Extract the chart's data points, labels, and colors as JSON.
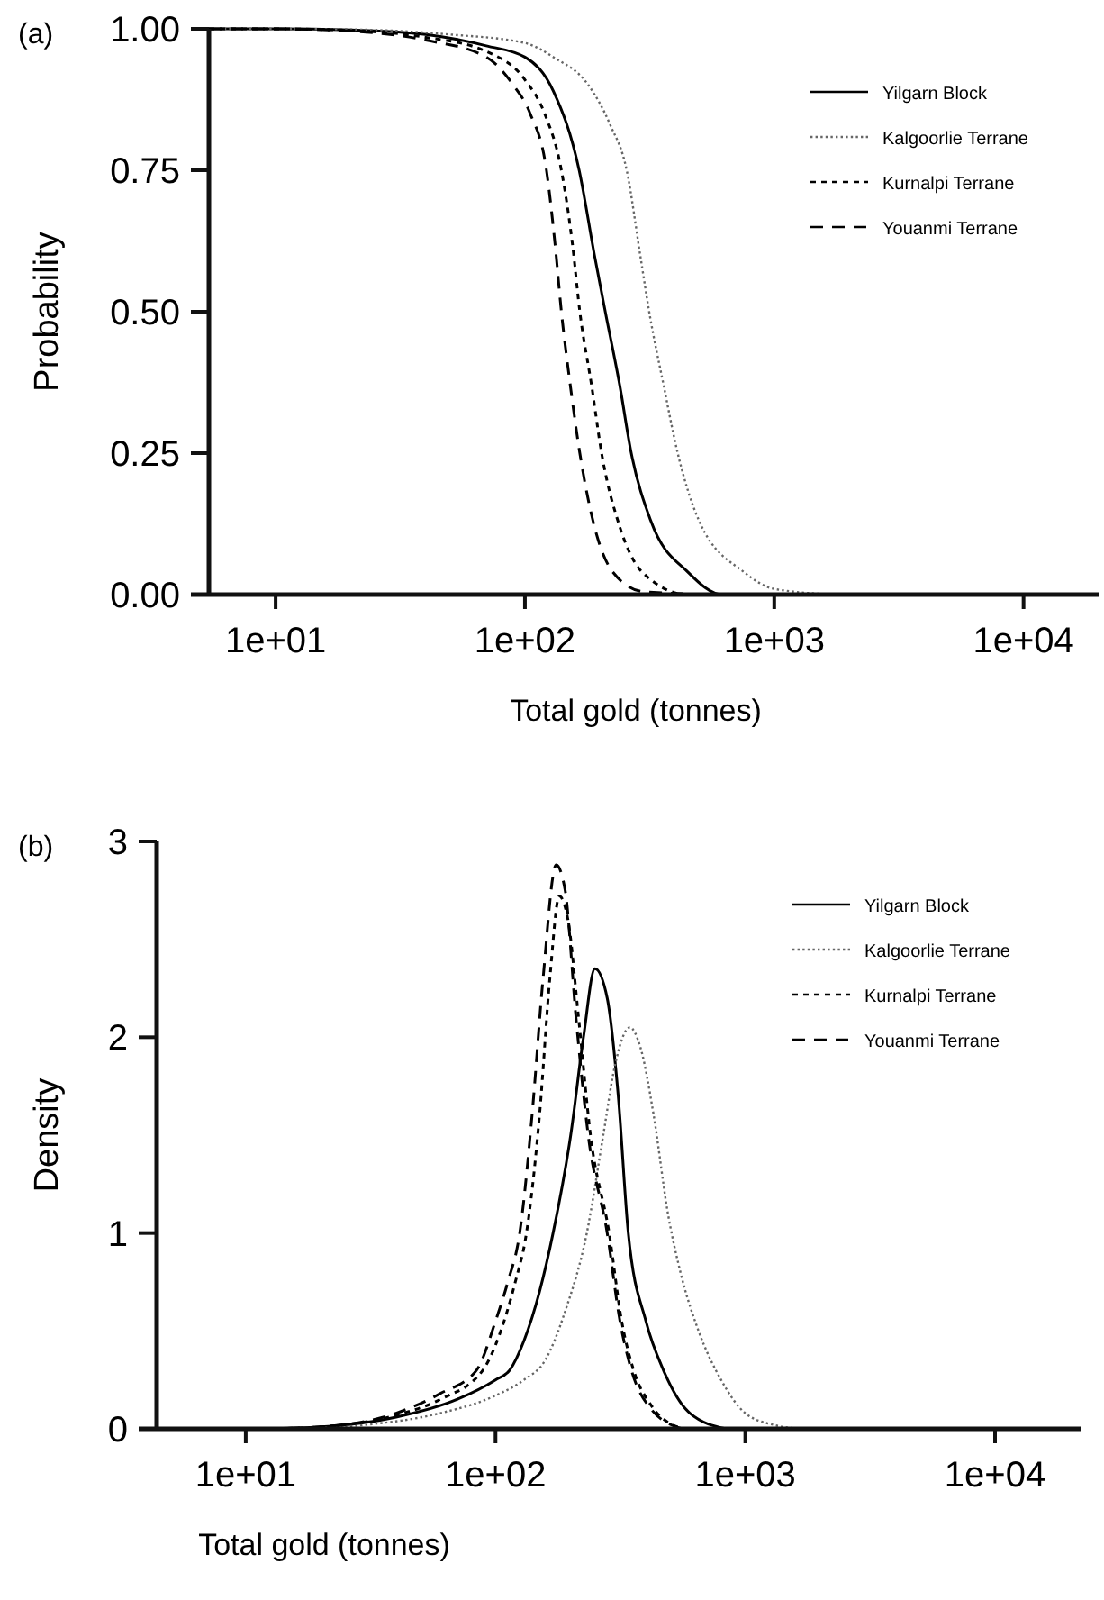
{
  "chart_data": [
    {
      "type": "line",
      "title": "(a)",
      "xlabel": "Total gold (tonnes)",
      "ylabel": "Probability",
      "log": "x",
      "legend": "top right",
      "grid": false,
      "xlim": [
        5.4,
        20000
      ],
      "xticks": [
        {
          "value": 10,
          "label": "1e+01"
        },
        {
          "value": 100,
          "label": "1e+02"
        },
        {
          "value": 1000,
          "label": "1e+03"
        },
        {
          "value": 10000,
          "label": "1e+04"
        }
      ],
      "ylim": [
        0,
        1
      ],
      "yticks": [
        {
          "value": 0,
          "label": "0.00"
        },
        {
          "value": 0.25,
          "label": "0.25"
        },
        {
          "value": 0.5,
          "label": "0.50"
        },
        {
          "value": 0.75,
          "label": "0.75"
        },
        {
          "value": 1,
          "label": "1.00"
        }
      ],
      "series": [
        {
          "name": "Yilgarn Block",
          "color": "#000000",
          "line_style": "solid",
          "x": [
            5.4,
            10,
            20,
            40,
            70,
            100,
            130,
            165,
            190,
            210,
            240,
            267,
            320,
            450,
            620,
            2000
          ],
          "values": [
            1,
            1,
            0.998,
            0.99,
            0.97,
            0.95,
            0.89,
            0.75,
            0.6,
            0.5,
            0.37,
            0.25,
            0.13,
            0.04,
            0,
            0
          ]
        },
        {
          "name": "Kalgoorlie Terrane",
          "color": "#666666",
          "line_style": "dotted",
          "x": [
            5.4,
            10,
            20,
            50,
            100,
            130,
            180,
            220,
            256,
            290,
            315,
            360,
            410,
            500,
            755,
            1000,
            1800
          ],
          "values": [
            1,
            1,
            0.999,
            0.99,
            0.975,
            0.95,
            0.9,
            0.83,
            0.75,
            0.6,
            0.5,
            0.37,
            0.25,
            0.13,
            0.04,
            0.01,
            0
          ]
        },
        {
          "name": "Kurnalpi Terrane",
          "color": "#000000",
          "line_style": "dashed",
          "x": [
            5.4,
            10,
            20,
            40,
            70,
            100,
            120,
            140,
            155,
            166,
            185,
            203,
            240,
            295,
            450,
            1000
          ],
          "values": [
            1,
            1,
            0.997,
            0.985,
            0.96,
            0.91,
            0.85,
            0.75,
            0.62,
            0.5,
            0.37,
            0.25,
            0.12,
            0.04,
            0,
            0
          ]
        },
        {
          "name": "Youanmi Terrane",
          "color": "#000000",
          "line_style": "longdash",
          "x": [
            5.4,
            10,
            20,
            40,
            70,
            90,
            105,
            122,
            132,
            140,
            152,
            166,
            190,
            225,
            300,
            600
          ],
          "values": [
            1,
            1,
            0.996,
            0.98,
            0.95,
            0.9,
            0.85,
            0.75,
            0.62,
            0.5,
            0.37,
            0.25,
            0.12,
            0.04,
            0.005,
            0
          ]
        }
      ]
    },
    {
      "type": "line",
      "title": "(b)",
      "xlabel": "Total gold (tonnes)",
      "ylabel": "Density",
      "log": "x",
      "legend": "top right",
      "grid": false,
      "xlim": [
        4.4,
        22000
      ],
      "xticks": [
        {
          "value": 10,
          "label": "1e+01"
        },
        {
          "value": 100,
          "label": "1e+02"
        },
        {
          "value": 1000,
          "label": "1e+03"
        },
        {
          "value": 10000,
          "label": "1e+04"
        }
      ],
      "ylim": [
        0,
        3
      ],
      "yticks": [
        0,
        1,
        2,
        3
      ],
      "series": [
        {
          "name": "Yilgarn Block",
          "color": "#000000",
          "line_style": "solid",
          "x": [
            12,
            20,
            40,
            70,
            100,
            114,
            130,
            150,
            170,
            200,
            225,
            250,
            280,
            310,
            340,
            400,
            470,
            600,
            840
          ],
          "values": [
            0,
            0.01,
            0.06,
            0.15,
            0.25,
            0.3,
            0.45,
            0.7,
            1.0,
            1.5,
            2.0,
            2.35,
            2.2,
            1.7,
            1.0,
            0.55,
            0.3,
            0.08,
            0
          ]
        },
        {
          "name": "Kalgoorlie Terrane",
          "color": "#666666",
          "line_style": "dotted",
          "x": [
            15,
            30,
            60,
            100,
            130,
            158,
            190,
            232,
            270,
            300,
            345,
            380,
            430,
            490,
            550,
            650,
            800,
            1000,
            1300,
            1700
          ],
          "values": [
            0,
            0.02,
            0.08,
            0.17,
            0.25,
            0.35,
            0.6,
            1.0,
            1.5,
            1.85,
            2.05,
            1.95,
            1.6,
            1.1,
            0.8,
            0.5,
            0.25,
            0.08,
            0.02,
            0
          ]
        },
        {
          "name": "Kurnalpi Terrane",
          "color": "#000000",
          "line_style": "dashed",
          "x": [
            12,
            20,
            40,
            60,
            89,
            105,
            120,
            133,
            150,
            165,
            180,
            195,
            215,
            240,
            285,
            320,
            357,
            420,
            560
          ],
          "values": [
            0,
            0.01,
            0.07,
            0.15,
            0.3,
            0.5,
            0.75,
            1.0,
            1.6,
            2.3,
            2.72,
            2.6,
            2.1,
            1.5,
            1.0,
            0.55,
            0.3,
            0.12,
            0
          ]
        },
        {
          "name": "Youanmi Terrane",
          "color": "#000000",
          "line_style": "longdash",
          "x": [
            12,
            20,
            40,
            60,
            84,
            100,
            112,
            125,
            140,
            155,
            175,
            190,
            210,
            235,
            280,
            315,
            350,
            420,
            560
          ],
          "values": [
            0,
            0.01,
            0.08,
            0.18,
            0.3,
            0.55,
            0.75,
            1.0,
            1.6,
            2.3,
            2.88,
            2.75,
            2.1,
            1.5,
            1.0,
            0.55,
            0.3,
            0.1,
            0
          ]
        }
      ]
    }
  ]
}
